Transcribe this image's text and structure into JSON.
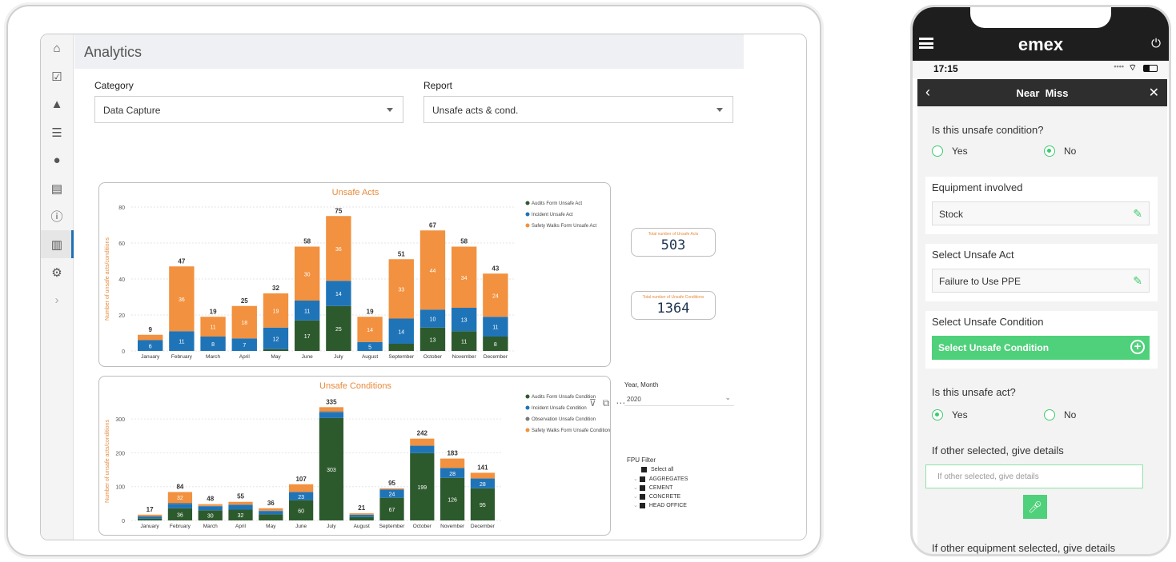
{
  "app": {
    "title": "Analytics",
    "nav_icons": [
      "home-icon",
      "checkbox-icon",
      "warning-icon",
      "list-icon",
      "chat-icon",
      "document-icon",
      "info-icon",
      "bar-chart-icon",
      "gears-icon",
      "chevron-right-icon"
    ]
  },
  "filters": {
    "category_label": "Category",
    "category_value": "Data Capture",
    "report_label": "Report",
    "report_value": "Unsafe acts & cond."
  },
  "kpis": {
    "acts_label": "Total number of Unsafe Acts",
    "acts_value": "503",
    "conditions_label": "Total number of Unsafe Conditions",
    "conditions_value": "1364"
  },
  "slicers": {
    "year_label": "Year, Month",
    "year_value": "2020",
    "fpu_label": "FPU Filter",
    "fpu_items": [
      "Select all",
      "AGGREGATES",
      "CEMENT",
      "CONCRETE",
      "HEAD OFFICE"
    ]
  },
  "colors": {
    "dark_green": "#2d5a2d",
    "blue": "#1f74b8",
    "orange": "#f2913f",
    "gray": "#7a7a7a",
    "accent_green": "#4fd07a"
  },
  "chart_data": [
    {
      "type": "bar",
      "stacked": true,
      "title": "Unsafe Acts",
      "ylabel": "Number of unsafe acts/conditions",
      "ylim": [
        0,
        80
      ],
      "yticks": [
        0,
        20,
        40,
        60,
        80
      ],
      "categories": [
        "January",
        "February",
        "March",
        "April",
        "May",
        "June",
        "July",
        "August",
        "September",
        "October",
        "November",
        "December"
      ],
      "totals": [
        9,
        47,
        19,
        25,
        32,
        58,
        75,
        19,
        51,
        67,
        58,
        43
      ],
      "series": [
        {
          "name": "Audits Form Unsafe Act",
          "color": "#2d5a2d",
          "values": [
            0,
            0,
            0,
            0,
            1,
            17,
            25,
            0,
            4,
            13,
            11,
            8
          ],
          "labels": [
            "",
            "",
            "",
            "",
            "",
            "17",
            "25",
            "",
            "",
            "13",
            "11",
            "8"
          ]
        },
        {
          "name": "Incident Unsafe Act",
          "color": "#1f74b8",
          "values": [
            6,
            11,
            8,
            7,
            12,
            11,
            14,
            5,
            14,
            10,
            13,
            11
          ],
          "labels": [
            "6",
            "11",
            "8",
            "7",
            "12",
            "11",
            "14",
            "5",
            "14",
            "10",
            "13",
            "11"
          ]
        },
        {
          "name": "Safety Walks Form Unsafe Act",
          "color": "#f2913f",
          "values": [
            3,
            36,
            11,
            18,
            19,
            30,
            36,
            14,
            33,
            44,
            34,
            24
          ],
          "labels": [
            "",
            "36",
            "11",
            "18",
            "19",
            "30",
            "36",
            "14",
            "33",
            "44",
            "34",
            "24"
          ]
        }
      ],
      "legend": "top-right"
    },
    {
      "type": "bar",
      "stacked": true,
      "title": "Unsafe Conditions",
      "ylabel": "Number of unsafe acts/conditions",
      "ylim": [
        0,
        350
      ],
      "yticks": [
        0,
        100,
        200,
        300
      ],
      "categories": [
        "January",
        "February",
        "March",
        "April",
        "May",
        "June",
        "July",
        "August",
        "September",
        "October",
        "November",
        "December"
      ],
      "totals": [
        17,
        84,
        48,
        55,
        36,
        107,
        335,
        21,
        95,
        242,
        183,
        141
      ],
      "series": [
        {
          "name": "Audits Form Unsafe Condition",
          "color": "#2d5a2d",
          "values": [
            5,
            36,
            30,
            32,
            18,
            60,
            303,
            10,
            67,
            199,
            126,
            95
          ],
          "labels": [
            "",
            "36",
            "30",
            "32",
            "",
            "60",
            "303",
            "",
            "67",
            "199",
            "126",
            "95"
          ]
        },
        {
          "name": "Incident Unsafe Condition",
          "color": "#1f74b8",
          "values": [
            7,
            13,
            12,
            14,
            10,
            23,
            17,
            7,
            24,
            21,
            28,
            28
          ],
          "labels": [
            "",
            "",
            "",
            "",
            "",
            "23",
            "",
            "",
            "24",
            "",
            "28",
            "28"
          ]
        },
        {
          "name": "Observation Unsafe Condition",
          "color": "#7a7a7a",
          "values": [
            0,
            3,
            1,
            1,
            1,
            2,
            3,
            0,
            1,
            2,
            2,
            2
          ],
          "labels": [
            "",
            "",
            "",
            "",
            "",
            "",
            "",
            "",
            "",
            "",
            "",
            ""
          ]
        },
        {
          "name": "Safety Walks Form Unsafe Condition",
          "color": "#f2913f",
          "values": [
            5,
            32,
            5,
            8,
            7,
            22,
            12,
            4,
            3,
            20,
            27,
            16
          ],
          "labels": [
            "",
            "32",
            "",
            "",
            "",
            "",
            "",
            "",
            "",
            "",
            "",
            ""
          ]
        }
      ],
      "legend": "top-right"
    }
  ],
  "phone": {
    "brand": "emex",
    "time": "17:15",
    "screen_title": "Near  Miss",
    "q_unsafe_condition": "Is this unsafe condition?",
    "yes": "Yes",
    "no": "No",
    "equipment_label": "Equipment involved",
    "equipment_value": "Stock",
    "unsafe_act_label": "Select Unsafe Act",
    "unsafe_act_value": "Failure to Use PPE",
    "unsafe_condition_label": "Select Unsafe Condition",
    "unsafe_condition_button": "Select Unsafe Condition",
    "q_unsafe_act": "Is this unsafe act?",
    "other_label": "If other selected, give details",
    "other_placeholder": "If other selected, give details",
    "other_equipment_label": "If other equipment selected, give details"
  }
}
